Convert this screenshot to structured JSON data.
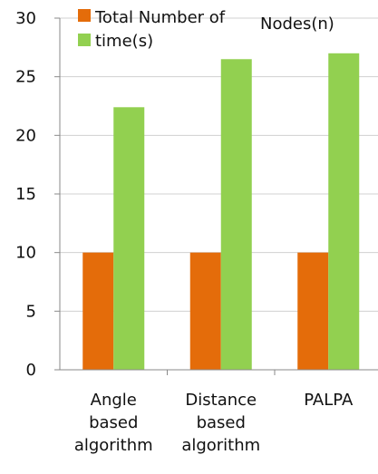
{
  "chart_data": {
    "type": "bar",
    "categories": [
      [
        "Angle",
        "based",
        "algorithm"
      ],
      [
        "Distance",
        "based",
        "algorithm"
      ],
      [
        "PALPA"
      ]
    ],
    "series": [
      {
        "name": "Total Number of Nodes(n)",
        "color": "#e46c0a",
        "values": [
          10,
          10,
          10
        ]
      },
      {
        "name": "time(s)",
        "color": "#92d050",
        "values": [
          22.4,
          26.5,
          27
        ]
      }
    ],
    "ylim": [
      0,
      30
    ],
    "yticks": [
      0,
      5,
      10,
      15,
      20,
      25,
      30
    ],
    "grid": true,
    "legend_position": "top"
  }
}
